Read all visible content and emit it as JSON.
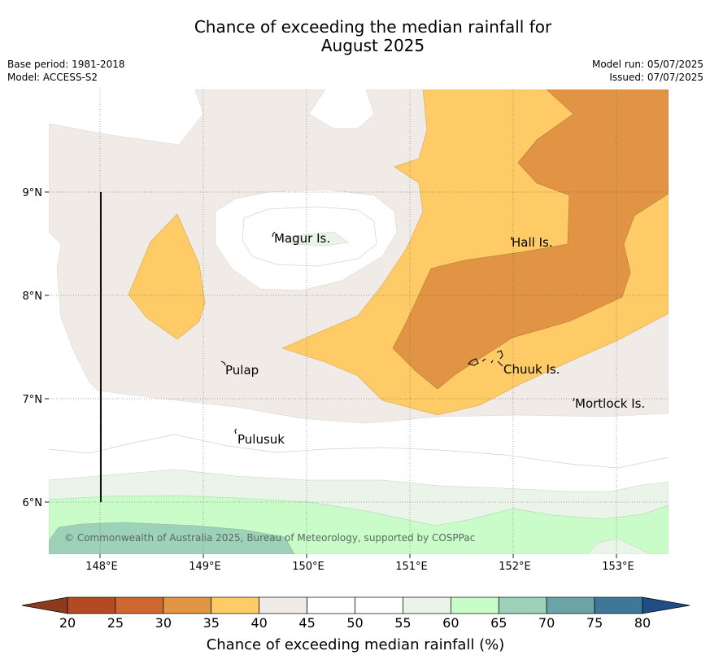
{
  "title": {
    "line1": "Chance of exceeding the median rainfall for",
    "line2": "August 2025"
  },
  "meta": {
    "base_period": "Base period: 1981-2018",
    "model": "Model: ACCESS-S2",
    "model_run": "Model run: 05/07/2025",
    "issued": "Issued: 07/07/2025"
  },
  "map": {
    "lon_ticks": [
      "148°E",
      "149°E",
      "150°E",
      "151°E",
      "152°E",
      "153°E"
    ],
    "lat_ticks": [
      "9°N",
      "8°N",
      "7°N",
      "6°N"
    ],
    "places": [
      "Magur Is.",
      "Hall Is.",
      "Pulap",
      "Chuuk Is.",
      "Mortlock Is.",
      "Pulusuk"
    ],
    "copyright": "© Commonwealth of Australia 2025, Bureau of Meteorology, supported by COSPPac"
  },
  "colorbar": {
    "label": "Chance of exceeding median rainfall (%)",
    "ticks": [
      "20",
      "25",
      "30",
      "35",
      "40",
      "45",
      "50",
      "55",
      "60",
      "65",
      "70",
      "75",
      "80"
    ],
    "colors": {
      "below_20": "#8e3a1e",
      "20_25": "#b34a24",
      "25_30": "#cf6733",
      "30_35": "#e09444",
      "35_40": "#fecb66",
      "40_45": "#f0ebe6",
      "45_50": "#ffffff",
      "50_55": "#ffffff",
      "55_60": "#eaf4e8",
      "60_65": "#c9fcc8",
      "65_70": "#9dd1b8",
      "70_75": "#6ba4a6",
      "75_80": "#3f7896",
      "above_80": "#1f4e86"
    }
  }
}
